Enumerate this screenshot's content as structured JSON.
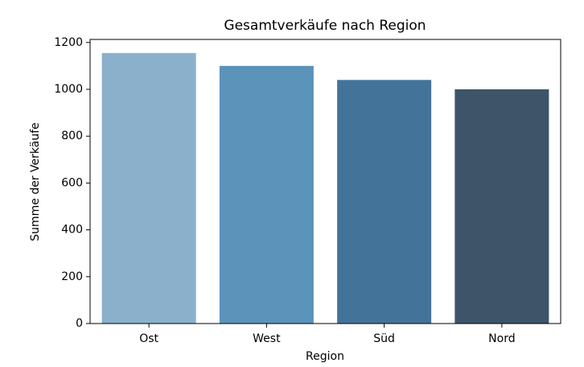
{
  "chart_data": {
    "type": "bar",
    "title": "Gesamtverkäufe nach Region",
    "x_label": "Region",
    "y_label": "Summe der Verkäufe",
    "categories": [
      "Ost",
      "West",
      "Süd",
      "Nord"
    ],
    "values": [
      1155,
      1100,
      1040,
      1000
    ],
    "colors": [
      "#8ab0cc",
      "#5c93bb",
      "#44739a",
      "#3d5469"
    ],
    "ylim": [
      0,
      1213
    ],
    "yticks": [
      0,
      200,
      400,
      600,
      800,
      1000,
      1200
    ],
    "grid": false
  }
}
